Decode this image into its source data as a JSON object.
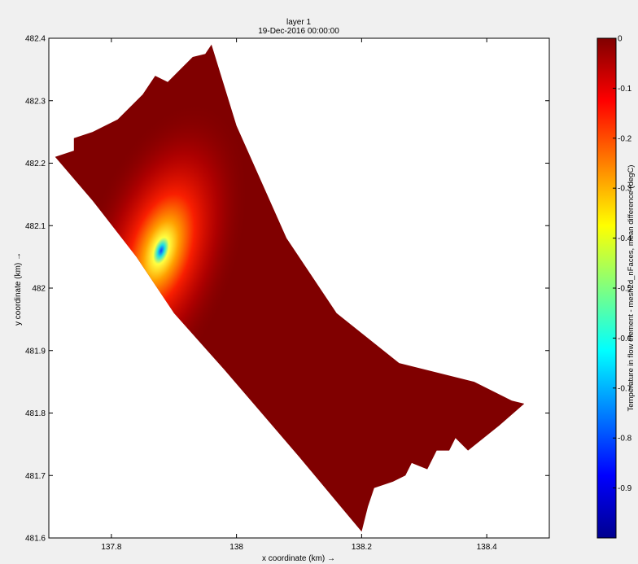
{
  "chart_data": {
    "type": "heatmap",
    "title": [
      "layer 1",
      "19-Dec-2016 00:00:00"
    ],
    "xlabel": "x coordinate (km) →",
    "ylabel": "y coordinate (km) →",
    "xlim": [
      137.7,
      138.5
    ],
    "ylim": [
      481.6,
      482.4
    ],
    "xticks": [
      137.8,
      138,
      138.2,
      138.4
    ],
    "yticks": [
      481.6,
      481.7,
      481.8,
      481.9,
      482,
      482.1,
      482.2,
      482.3,
      482.4
    ],
    "xtick_labels": [
      "137.8",
      "138",
      "138.2",
      "138.4"
    ],
    "ytick_labels": [
      "481.6",
      "481.7",
      "481.8",
      "481.9",
      "482",
      "482.1",
      "482.2",
      "482.3",
      "482.4"
    ],
    "grid": false,
    "domain_outline": [
      [
        137.71,
        482.21
      ],
      [
        137.74,
        482.22
      ],
      [
        137.74,
        482.24
      ],
      [
        137.77,
        482.25
      ],
      [
        137.81,
        482.27
      ],
      [
        137.85,
        482.31
      ],
      [
        137.87,
        482.34
      ],
      [
        137.89,
        482.33
      ],
      [
        137.91,
        482.35
      ],
      [
        137.93,
        482.37
      ],
      [
        137.95,
        482.375
      ],
      [
        137.96,
        482.39
      ],
      [
        138.0,
        482.26
      ],
      [
        138.08,
        482.08
      ],
      [
        138.16,
        481.96
      ],
      [
        138.26,
        481.88
      ],
      [
        138.38,
        481.85
      ],
      [
        138.44,
        481.82
      ],
      [
        138.46,
        481.815
      ],
      [
        138.42,
        481.78
      ],
      [
        138.37,
        481.74
      ],
      [
        138.35,
        481.76
      ],
      [
        138.34,
        481.74
      ],
      [
        138.32,
        481.74
      ],
      [
        138.305,
        481.71
      ],
      [
        138.28,
        481.72
      ],
      [
        138.27,
        481.7
      ],
      [
        138.25,
        481.69
      ],
      [
        138.22,
        481.68
      ],
      [
        138.21,
        481.65
      ],
      [
        138.2,
        481.61
      ],
      [
        138.15,
        481.67
      ],
      [
        138.1,
        481.73
      ],
      [
        138.04,
        481.8
      ],
      [
        137.98,
        481.87
      ],
      [
        137.9,
        481.96
      ],
      [
        137.84,
        482.05
      ],
      [
        137.77,
        482.14
      ]
    ],
    "anomaly_source": {
      "x": 137.88,
      "y": 482.062,
      "min_value": -0.9
    },
    "colorbar": {
      "label": "Temperature in flow element - mesh2d_nFaces, mean difference (degC)",
      "range": [
        -1,
        0
      ],
      "ticks": [
        0,
        -0.1,
        -0.2,
        -0.3,
        -0.4,
        -0.5,
        -0.6,
        -0.7,
        -0.8,
        -0.9
      ],
      "tick_labels": [
        "0",
        "-0.1",
        "-0.2",
        "-0.3",
        "-0.4",
        "-0.5",
        "-0.6",
        "-0.7",
        "-0.8",
        "-0.9"
      ]
    }
  }
}
